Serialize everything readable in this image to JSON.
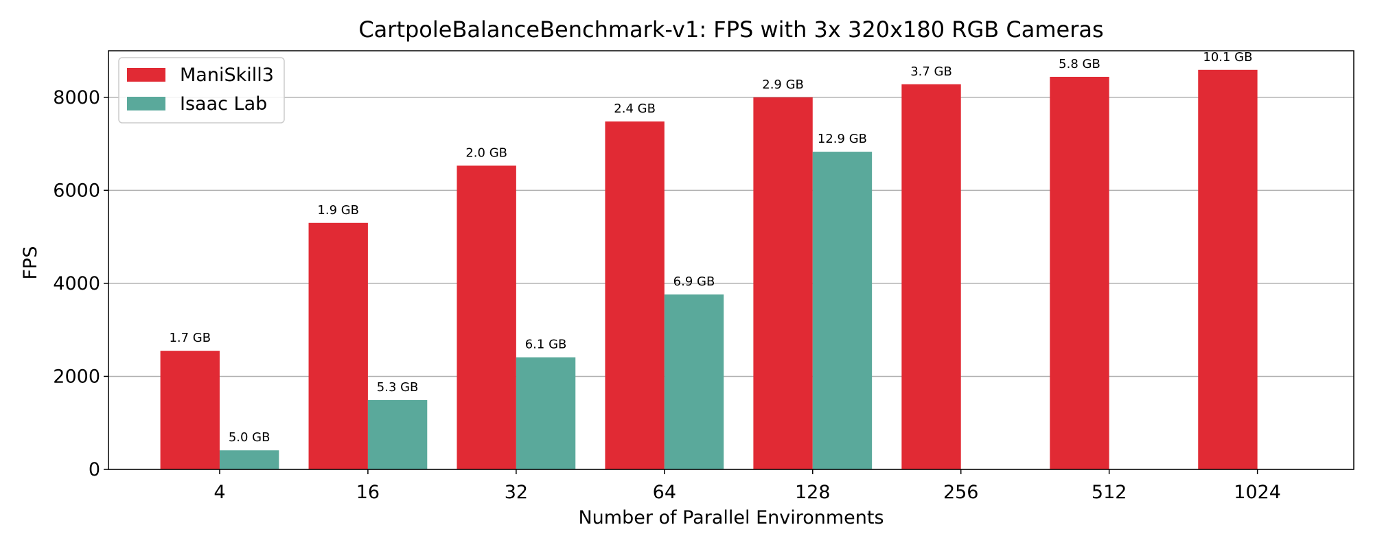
{
  "colors": {
    "maniskill": "#e12a34",
    "isaac": "#5aa99b",
    "grid": "#b0b0b0",
    "axis": "#000000"
  },
  "chart_data": {
    "type": "bar",
    "title": "CartpoleBalanceBenchmark-v1: FPS with 3x 320x180 RGB Cameras",
    "xlabel": "Number of Parallel Environments",
    "ylabel": "FPS",
    "categories": [
      "4",
      "16",
      "32",
      "64",
      "128",
      "256",
      "512",
      "1024"
    ],
    "yticks": [
      "0",
      "2000",
      "4000",
      "6000",
      "8000"
    ],
    "ylim": [
      0,
      9000
    ],
    "grid": "horizontal",
    "legend_position": "top-left",
    "series": [
      {
        "name": "ManiSkill3",
        "values": [
          2550,
          5300,
          6530,
          7480,
          8000,
          8280,
          8440,
          8590
        ],
        "labels": [
          "1.7 GB",
          "1.9 GB",
          "2.0 GB",
          "2.4 GB",
          "2.9 GB",
          "3.7 GB",
          "5.8 GB",
          "10.1 GB"
        ]
      },
      {
        "name": "Isaac Lab",
        "values": [
          410,
          1490,
          2410,
          3760,
          6830,
          null,
          null,
          null
        ],
        "labels": [
          "5.0 GB",
          "5.3 GB",
          "6.1 GB",
          "6.9 GB",
          "12.9 GB",
          null,
          null,
          null
        ]
      }
    ]
  }
}
